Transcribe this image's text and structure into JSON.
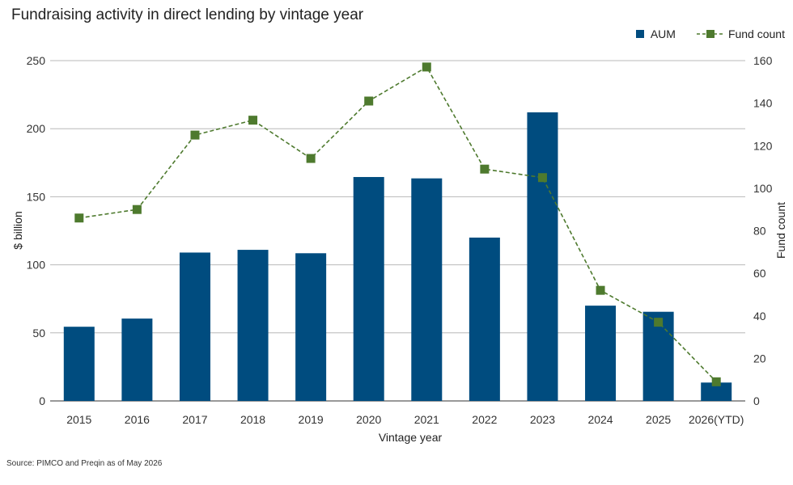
{
  "title": "Fundraising activity in direct lending by vintage year",
  "source": "Source: PIMCO and Preqin as of May 2026",
  "colors": {
    "bar": "#004c7f",
    "line": "#4e7a2e",
    "grid": "#b8b8b8"
  },
  "chart_data": {
    "type": "bar",
    "categories": [
      "2015",
      "2016",
      "2017",
      "2018",
      "2019",
      "2020",
      "2021",
      "2022",
      "2023",
      "2024",
      "2025",
      "2026(YTD)"
    ],
    "series": [
      {
        "name": "AUM",
        "type": "bar",
        "axis": "left",
        "values": [
          54.5,
          60.5,
          109,
          111,
          108.5,
          164.5,
          163.5,
          120,
          212,
          70,
          65.5,
          13.5
        ]
      },
      {
        "name": "Fund count",
        "type": "line",
        "axis": "right",
        "values": [
          86,
          90,
          125,
          132,
          114,
          141,
          157,
          109,
          105,
          52,
          37,
          9
        ]
      }
    ],
    "xlabel": "Vintage year",
    "ylabel": "$ billion",
    "y2label": "Fund count",
    "ylim": [
      0,
      250
    ],
    "y2lim": [
      0,
      160
    ],
    "yticks": [
      "0",
      "50",
      "100",
      "150",
      "200",
      "250"
    ],
    "y2ticks": [
      "0",
      "20",
      "40",
      "60",
      "80",
      "100",
      "120",
      "140",
      "160"
    ],
    "grid": true,
    "legend_position": "top-right"
  }
}
